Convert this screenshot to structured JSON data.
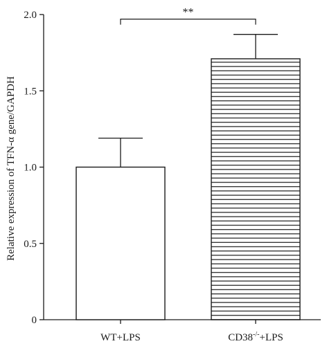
{
  "chart_data": {
    "type": "bar",
    "categories": [
      "WT+LPS",
      "CD38-/-+LPS"
    ],
    "category_display": [
      {
        "main": "WT+LPS",
        "sup": "",
        "tail": ""
      },
      {
        "main": "CD38",
        "sup": "-/-",
        "tail": "+LPS"
      }
    ],
    "values": [
      1.0,
      1.71
    ],
    "errors": [
      0.19,
      0.16
    ],
    "ylabel": "Relative expression of TFN-α gene/GAPDH",
    "xlabel": "",
    "ylim": [
      0,
      2.0
    ],
    "yticks": [
      0,
      0.5,
      1.0,
      1.5,
      2.0
    ],
    "ytick_labels": [
      "0",
      "0.5",
      "1.0",
      "1.5",
      "2.0"
    ],
    "bar_fills": [
      "none",
      "horizontal-stripes"
    ],
    "significance": {
      "between": [
        0,
        1
      ],
      "label": "**",
      "y": 1.97
    },
    "grid": false,
    "colors": {
      "stroke": "#1a1a1a",
      "background": "#ffffff"
    }
  }
}
